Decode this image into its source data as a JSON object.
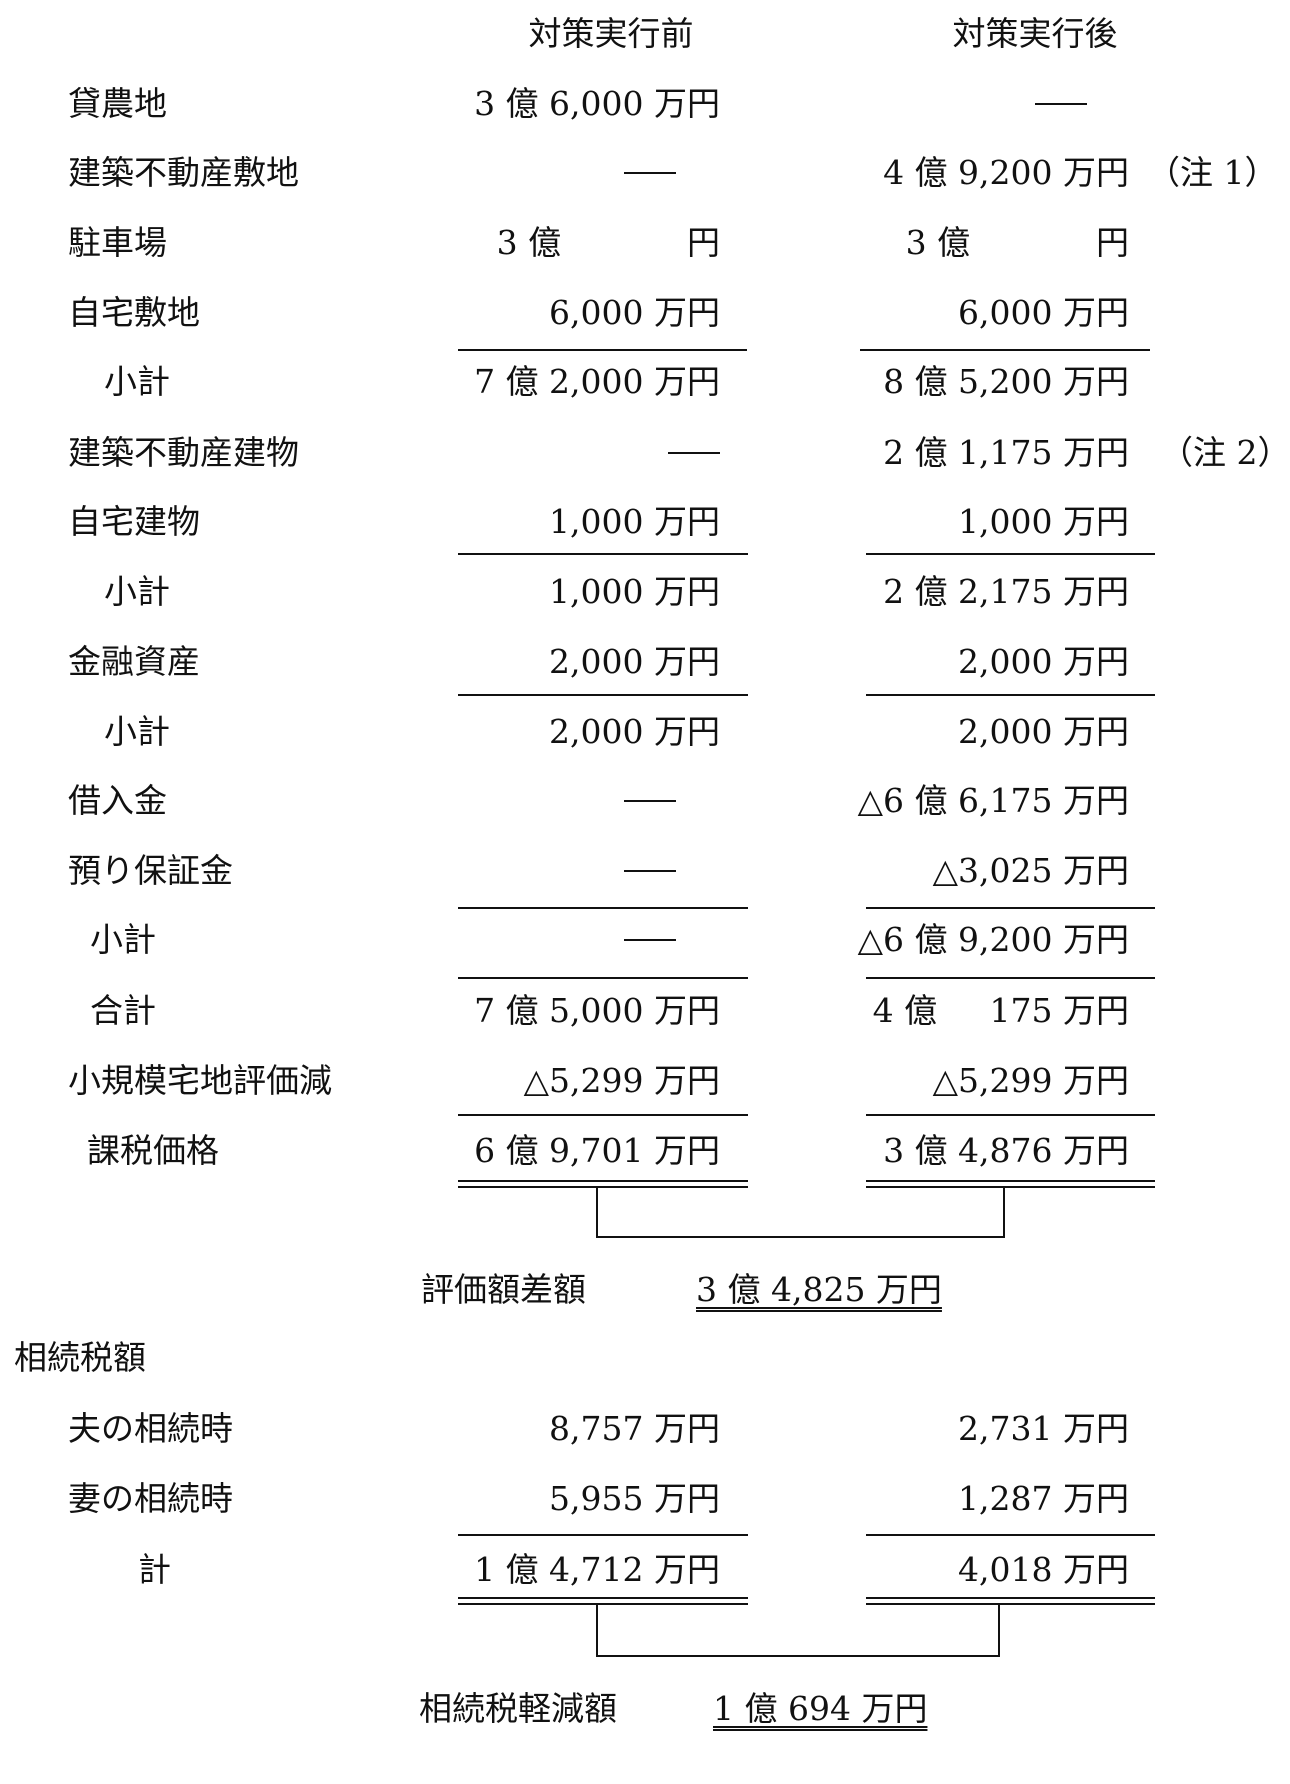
{
  "headers": {
    "before": "対策実行前",
    "after": "対策実行後"
  },
  "rows": [
    {
      "label": "貸農地",
      "before": "3 億 6,000 万円",
      "after": "—"
    },
    {
      "label": "建築不動産敷地",
      "before": "—",
      "after": "4 億 9,200 万円",
      "note": "（注 1）"
    },
    {
      "label": "駐車場",
      "before": "3 億            円",
      "after": "3 億            円"
    },
    {
      "label": "自宅敷地",
      "before": "6,000 万円",
      "after": "6,000 万円"
    },
    {
      "label": "小計",
      "before": "7 億 2,000 万円",
      "after": "8 億 5,200 万円"
    },
    {
      "label": "建築不動産建物",
      "before": "—",
      "after": "2 億 1,175 万円",
      "note": "（注 2）"
    },
    {
      "label": "自宅建物",
      "before": "1,000 万円",
      "after": "1,000 万円"
    },
    {
      "label": "小計",
      "before": "1,000 万円",
      "after": "2 億 2,175 万円"
    },
    {
      "label": "金融資産",
      "before": "2,000 万円",
      "after": "2,000 万円"
    },
    {
      "label": "小計",
      "before": "2,000 万円",
      "after": "2,000 万円"
    },
    {
      "label": "借入金",
      "before": "—",
      "after": "△6 億 6,175 万円"
    },
    {
      "label": "預り保証金",
      "before": "—",
      "after": "△3,025 万円"
    },
    {
      "label": "小計",
      "before": "—",
      "after": "△6 億 9,200 万円"
    },
    {
      "label": "合計",
      "before": "7 億 5,000 万円",
      "after": "4 億     175 万円"
    },
    {
      "label": "小規模宅地評価減",
      "before": "△5,299 万円",
      "after": "△5,299 万円"
    },
    {
      "label": "課税価格",
      "before": "6 億 9,701 万円",
      "after": "3 億 4,876 万円"
    }
  ],
  "valuation_difference": {
    "label": "評価額差額",
    "value": "3 億 4,825 万円"
  },
  "inheritance_tax": {
    "title": "相続税額",
    "rows": [
      {
        "label": "夫の相続時",
        "before": "8,757 万円",
        "after": "2,731 万円"
      },
      {
        "label": "妻の相続時",
        "before": "5,955 万円",
        "after": "1,287 万円"
      },
      {
        "label": "計",
        "before": "1 億 4,712 万円",
        "after": "4,018 万円"
      }
    ]
  },
  "tax_reduction": {
    "label": "相続税軽減額",
    "value": "1 億 694 万円"
  }
}
